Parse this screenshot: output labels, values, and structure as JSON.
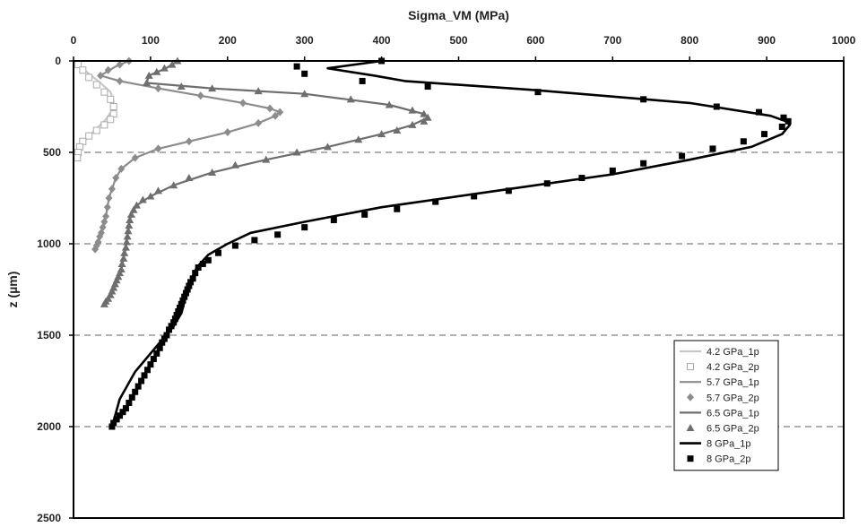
{
  "chart_data": {
    "type": "line",
    "x_axis_title": "Sigma_VM (MPa)",
    "y_axis_title": "z (µm)",
    "x_axis_position": "top",
    "y_axis_inverted": true,
    "xlim": [
      0,
      1000
    ],
    "ylim": [
      0,
      2500
    ],
    "x_ticks": [
      "0",
      "100",
      "200",
      "300",
      "400",
      "500",
      "600",
      "700",
      "800",
      "900",
      "1000"
    ],
    "y_ticks": [
      "0",
      "500",
      "1000",
      "1500",
      "2000",
      "2500"
    ],
    "grid": "dashed horizontal lines at z = 500, 1000, 1500, 2000",
    "legend_position": "bottom-right",
    "series": [
      {
        "name": "4.2 GPa_1p",
        "style": "line",
        "color": "#c8c8c8",
        "x": [
          10,
          8,
          20,
          35,
          48,
          52,
          50,
          42,
          30,
          18,
          10,
          8,
          8
        ],
        "y": [
          0,
          30,
          70,
          120,
          170,
          220,
          270,
          320,
          370,
          420,
          460,
          500,
          530
        ]
      },
      {
        "name": "4.2 GPa_2p",
        "style": "marker",
        "marker": "square-open",
        "color": "#aaaaaa",
        "x": [
          6,
          12,
          20,
          30,
          40,
          48,
          52,
          52,
          48,
          40,
          30,
          20,
          12,
          8,
          6,
          5
        ],
        "y": [
          20,
          50,
          90,
          130,
          170,
          210,
          250,
          290,
          320,
          350,
          380,
          410,
          440,
          470,
          500,
          530
        ]
      },
      {
        "name": "5.7 GPa_1p",
        "style": "line",
        "color": "#8c8c8c",
        "x": [
          72,
          55,
          35,
          60,
          110,
          165,
          220,
          255,
          268,
          262,
          240,
          200,
          150,
          110,
          80,
          62,
          55,
          50,
          46,
          44,
          42,
          40,
          38,
          36,
          34,
          32,
          30,
          28
        ],
        "y": [
          0,
          30,
          80,
          110,
          150,
          190,
          230,
          260,
          280,
          300,
          340,
          390,
          440,
          480,
          530,
          590,
          640,
          700,
          750,
          800,
          850,
          880,
          910,
          940,
          960,
          990,
          1010,
          1030
        ]
      },
      {
        "name": "5.7 GPa_2p",
        "style": "marker",
        "marker": "diamond",
        "color": "#8c8c8c",
        "x": [
          72,
          60,
          45,
          35,
          60,
          110,
          165,
          220,
          255,
          268,
          262,
          240,
          200,
          150,
          110,
          80,
          62,
          55,
          50,
          46,
          44,
          42,
          40,
          38,
          36,
          34,
          32,
          30,
          28
        ],
        "y": [
          0,
          20,
          50,
          80,
          110,
          150,
          190,
          230,
          260,
          280,
          300,
          340,
          390,
          440,
          480,
          530,
          590,
          640,
          700,
          750,
          800,
          850,
          880,
          910,
          940,
          960,
          990,
          1010,
          1030
        ]
      },
      {
        "name": "6.5 GPa_1p",
        "style": "line",
        "color": "#6e6e6e",
        "x": [
          135,
          120,
          98,
          95,
          180,
          300,
          410,
          455,
          460,
          440,
          400,
          330,
          250,
          180,
          130,
          100,
          82,
          75,
          72,
          70,
          68,
          65,
          62,
          58,
          54,
          50,
          45,
          40
        ],
        "y": [
          0,
          40,
          80,
          120,
          150,
          180,
          240,
          290,
          310,
          350,
          400,
          470,
          540,
          610,
          680,
          740,
          790,
          840,
          900,
          960,
          1020,
          1080,
          1140,
          1180,
          1220,
          1260,
          1300,
          1330
        ]
      },
      {
        "name": "6.5 GPa_2p",
        "style": "marker",
        "marker": "triangle",
        "color": "#6e6e6e",
        "x": [
          135,
          128,
          118,
          108,
          98,
          95,
          140,
          180,
          240,
          300,
          360,
          410,
          440,
          455,
          460,
          455,
          440,
          420,
          400,
          370,
          330,
          290,
          250,
          210,
          180,
          150,
          130,
          110,
          100,
          90,
          82,
          78,
          75,
          73,
          72,
          71,
          70,
          69,
          68,
          66,
          65,
          63,
          62,
          60,
          58,
          56,
          54,
          52,
          50,
          48,
          45,
          42,
          40
        ],
        "y": [
          0,
          20,
          40,
          60,
          80,
          120,
          140,
          150,
          165,
          180,
          210,
          240,
          270,
          290,
          310,
          330,
          350,
          380,
          400,
          430,
          470,
          500,
          540,
          570,
          610,
          640,
          680,
          710,
          740,
          760,
          790,
          815,
          840,
          870,
          900,
          930,
          960,
          990,
          1020,
          1050,
          1080,
          1110,
          1140,
          1160,
          1180,
          1200,
          1220,
          1240,
          1260,
          1280,
          1300,
          1315,
          1330
        ]
      },
      {
        "name": "8 GPa_1p",
        "style": "line",
        "color": "#000000",
        "x": [
          400,
          330,
          390,
          430,
          600,
          800,
          905,
          925,
          930,
          920,
          880,
          800,
          700,
          550,
          400,
          300,
          230,
          200,
          175,
          160,
          150,
          145,
          140,
          130,
          120,
          100,
          80,
          60,
          50
        ],
        "y": [
          0,
          40,
          80,
          110,
          160,
          230,
          300,
          330,
          350,
          400,
          470,
          540,
          620,
          710,
          800,
          880,
          940,
          1000,
          1060,
          1130,
          1220,
          1300,
          1380,
          1450,
          1500,
          1600,
          1700,
          1850,
          2000
        ]
      },
      {
        "name": "8 GPa_2p",
        "style": "marker",
        "marker": "square-filled",
        "color": "#000000",
        "x": [
          400,
          290,
          300,
          375,
          460,
          603,
          740,
          835,
          890,
          922,
          928,
          920,
          897,
          870,
          830,
          790,
          740,
          700,
          660,
          615,
          565,
          520,
          470,
          420,
          378,
          338,
          300,
          265,
          235,
          210,
          188,
          175,
          168,
          162,
          158,
          155,
          152,
          150,
          148,
          146,
          144,
          142,
          140,
          138,
          136,
          134,
          132,
          130,
          127,
          124,
          121,
          118,
          115,
          112,
          108,
          104,
          100,
          96,
          92,
          88,
          84,
          80,
          76,
          72,
          68,
          64,
          60,
          56,
          52,
          50
        ],
        "y": [
          0,
          30,
          70,
          110,
          140,
          170,
          210,
          250,
          280,
          310,
          330,
          360,
          400,
          440,
          480,
          520,
          560,
          600,
          640,
          670,
          710,
          740,
          770,
          810,
          840,
          870,
          910,
          950,
          980,
          1010,
          1050,
          1090,
          1110,
          1130,
          1160,
          1190,
          1210,
          1230,
          1250,
          1270,
          1290,
          1310,
          1330,
          1350,
          1370,
          1390,
          1410,
          1430,
          1450,
          1470,
          1500,
          1520,
          1540,
          1570,
          1600,
          1630,
          1660,
          1690,
          1720,
          1750,
          1780,
          1810,
          1840,
          1870,
          1900,
          1920,
          1940,
          1960,
          1980,
          2000
        ]
      }
    ]
  }
}
